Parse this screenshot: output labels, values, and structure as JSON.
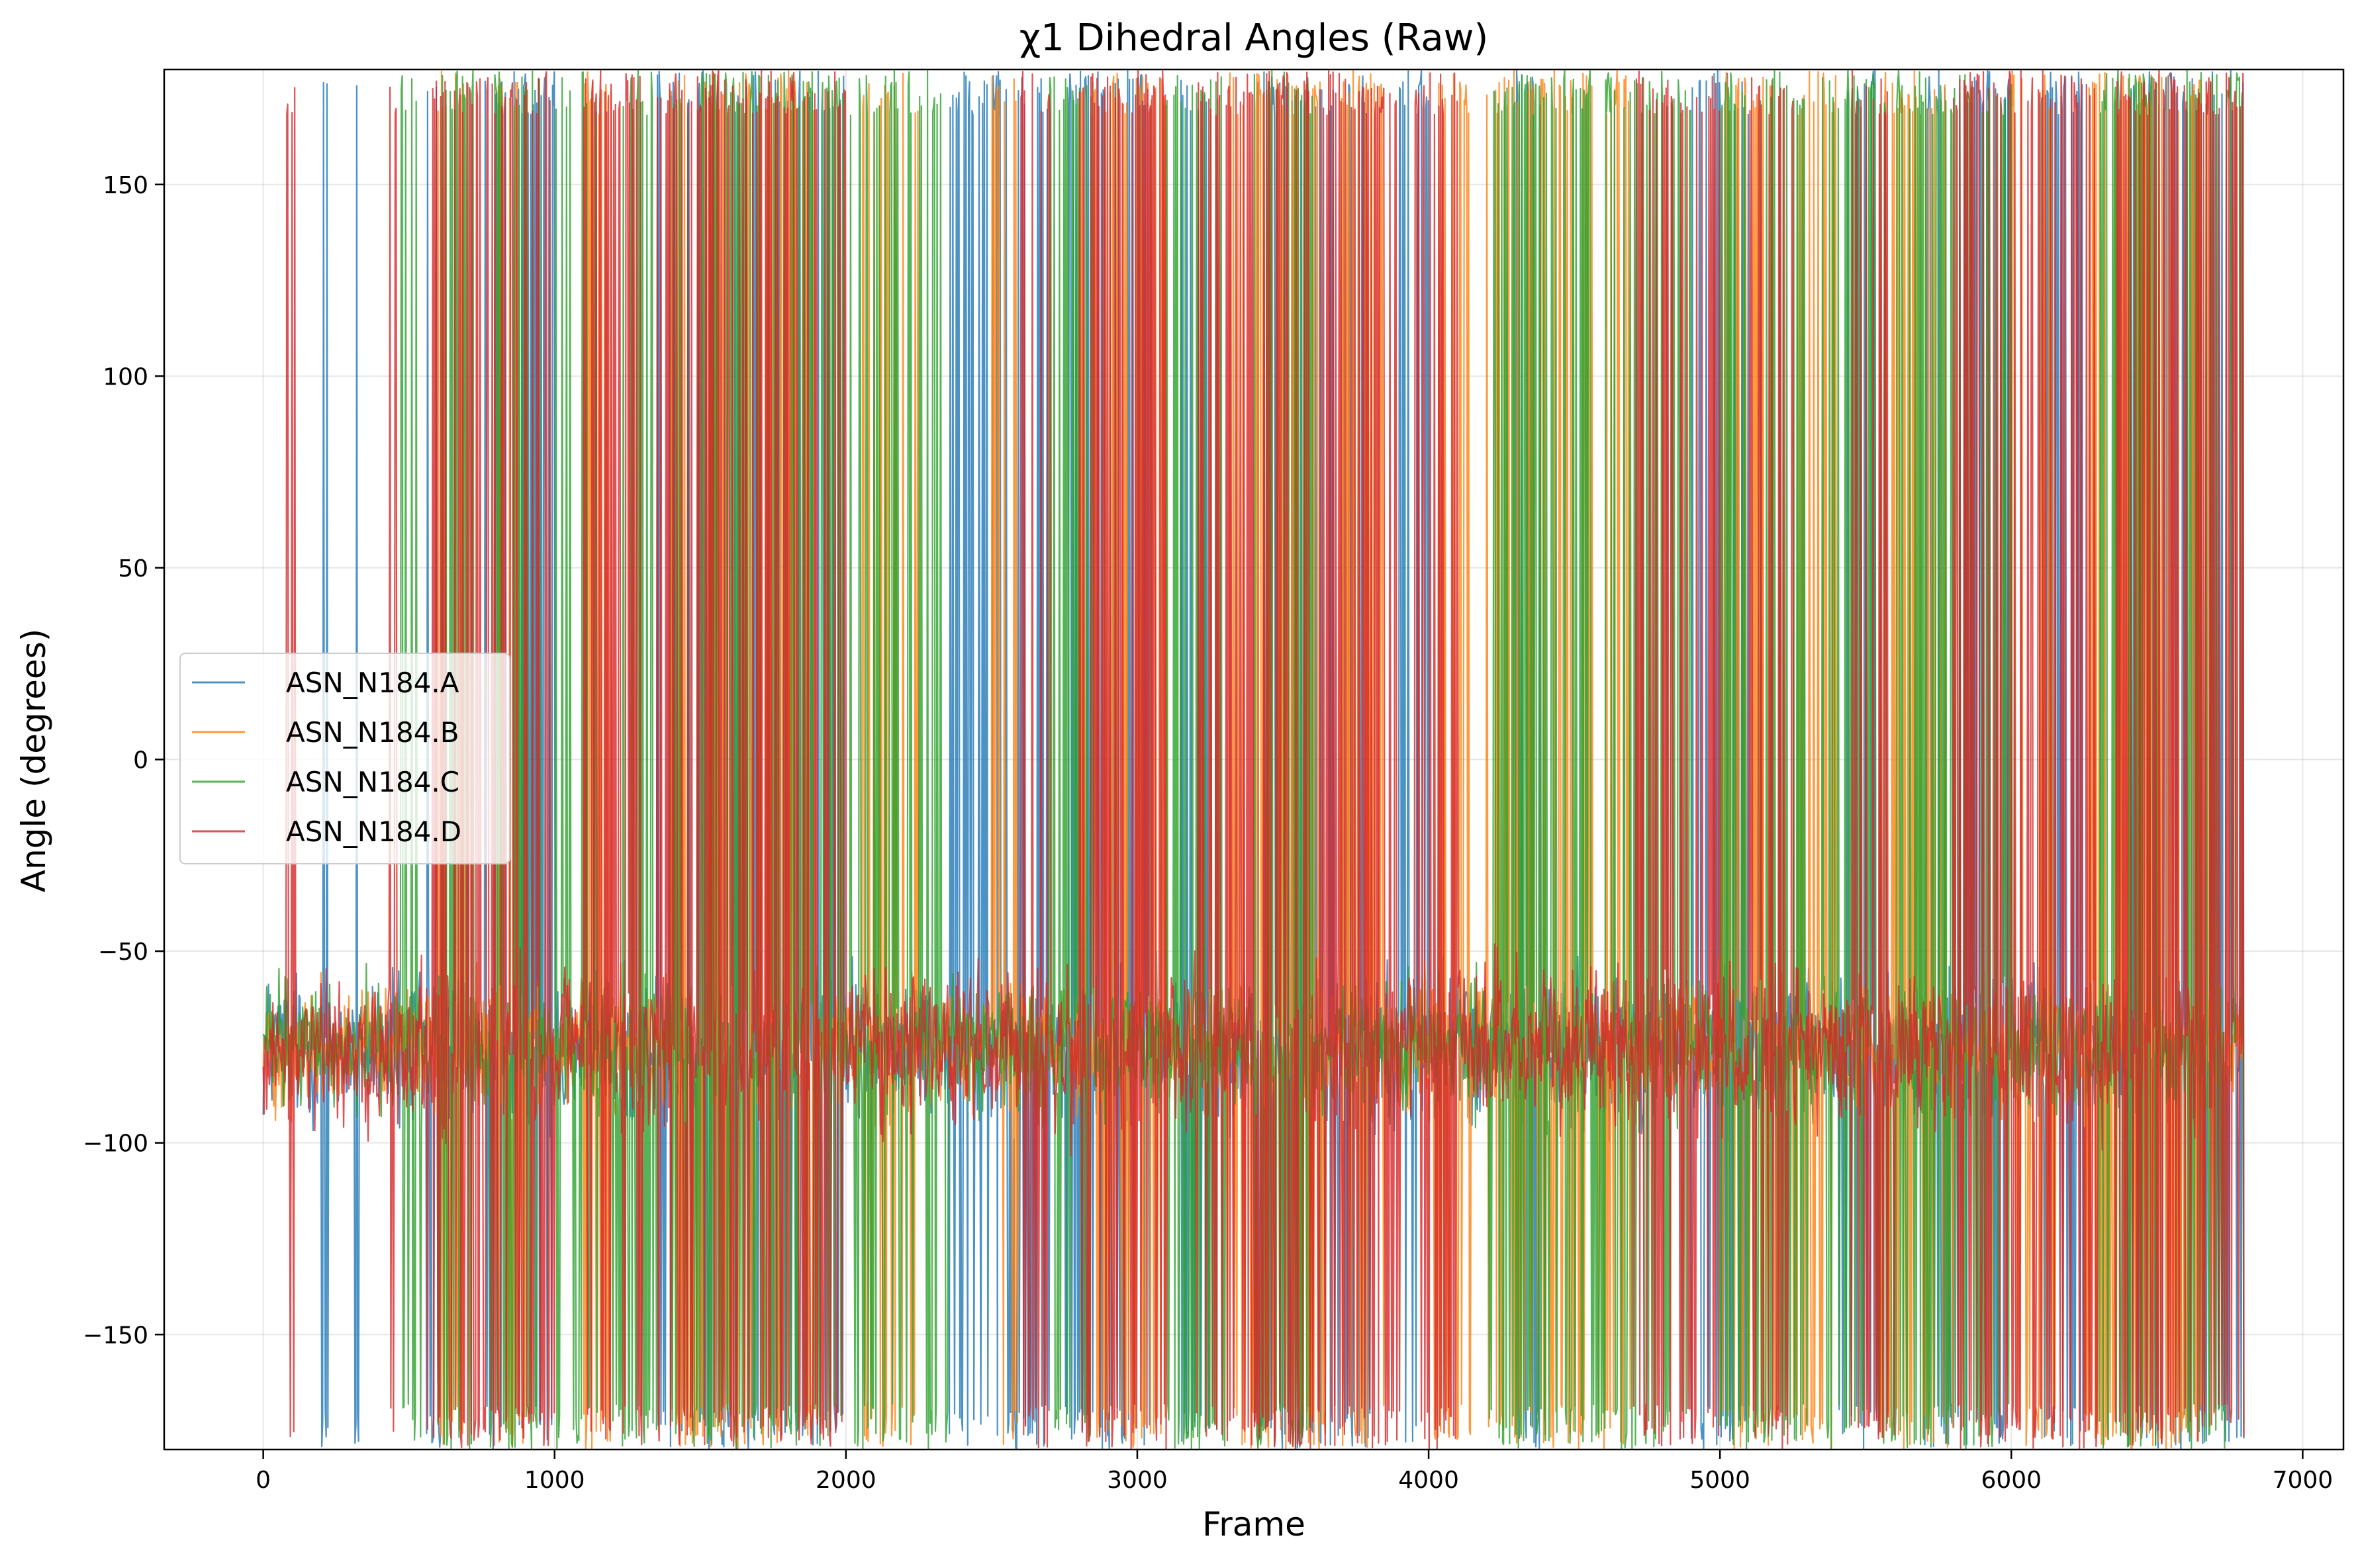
{
  "chart_data": {
    "type": "line",
    "title": "χ1 Dihedral Angles (Raw)",
    "xlabel": "Frame",
    "ylabel": "Angle (degrees)",
    "xlim": [
      -340,
      7140
    ],
    "ylim": [
      -180,
      180
    ],
    "x_ticks": [
      0,
      1000,
      2000,
      3000,
      4000,
      5000,
      6000,
      7000
    ],
    "x_tick_labels": [
      "0",
      "1000",
      "2000",
      "3000",
      "4000",
      "5000",
      "6000",
      "7000"
    ],
    "y_ticks": [
      -150,
      -100,
      -50,
      0,
      50,
      100,
      150
    ],
    "y_tick_labels": [
      "−150",
      "−100",
      "−50",
      "0",
      "50",
      "100",
      "150"
    ],
    "grid": true,
    "legend_position": "center-left",
    "frame_count": 6800,
    "series": [
      {
        "name": "ASN_N184.A",
        "color": "#1f77b4",
        "baseline": -75,
        "jitter": 12,
        "flip_segments": [
          [
            200,
            230
          ],
          [
            310,
            330
          ],
          [
            560,
            620
          ],
          [
            760,
            1000
          ],
          [
            1350,
            1700
          ],
          [
            1750,
            2000
          ],
          [
            2350,
            2700
          ],
          [
            2750,
            3050
          ],
          [
            3150,
            3250
          ],
          [
            3400,
            3800
          ],
          [
            3900,
            4000
          ],
          [
            4300,
            4400
          ],
          [
            4900,
            5100
          ],
          [
            5400,
            5550
          ],
          [
            5700,
            6000
          ],
          [
            6100,
            6250
          ],
          [
            6400,
            6800
          ]
        ]
      },
      {
        "name": "ASN_N184.B",
        "color": "#ff7f0e",
        "baseline": -75,
        "jitter": 10,
        "flip_segments": [
          [
            600,
            700
          ],
          [
            800,
            900
          ],
          [
            1100,
            1200
          ],
          [
            1400,
            1900
          ],
          [
            2050,
            2250
          ],
          [
            2500,
            2600
          ],
          [
            2800,
            3100
          ],
          [
            3300,
            3650
          ],
          [
            3700,
            3850
          ],
          [
            4000,
            4150
          ],
          [
            4200,
            4700
          ],
          [
            5000,
            5200
          ],
          [
            5250,
            5400
          ],
          [
            5550,
            5800
          ],
          [
            6000,
            6150
          ],
          [
            6250,
            6700
          ]
        ]
      },
      {
        "name": "ASN_N184.C",
        "color": "#2ca02c",
        "baseline": -75,
        "jitter": 11,
        "flip_segments": [
          [
            470,
            560
          ],
          [
            600,
            720
          ],
          [
            780,
            950
          ],
          [
            1000,
            1150
          ],
          [
            1200,
            1350
          ],
          [
            1400,
            2350
          ],
          [
            2700,
            2850
          ],
          [
            3100,
            3300
          ],
          [
            3400,
            3600
          ],
          [
            4200,
            4900
          ],
          [
            5000,
            5300
          ],
          [
            5350,
            5600
          ],
          [
            5600,
            6000
          ],
          [
            6300,
            6500
          ],
          [
            6600,
            6800
          ]
        ]
      },
      {
        "name": "ASN_N184.D",
        "color": "#d62728",
        "baseline": -75,
        "jitter": 13,
        "flip_segments": [
          [
            80,
            110
          ],
          [
            430,
            460
          ],
          [
            560,
            1000
          ],
          [
            1100,
            1300
          ],
          [
            1350,
            2000
          ],
          [
            2600,
            2700
          ],
          [
            2800,
            3100
          ],
          [
            3200,
            3900
          ],
          [
            3950,
            4100
          ],
          [
            4700,
            5000
          ],
          [
            5100,
            5250
          ],
          [
            5450,
            5600
          ],
          [
            5800,
            6300
          ],
          [
            6350,
            6800
          ]
        ]
      }
    ]
  }
}
